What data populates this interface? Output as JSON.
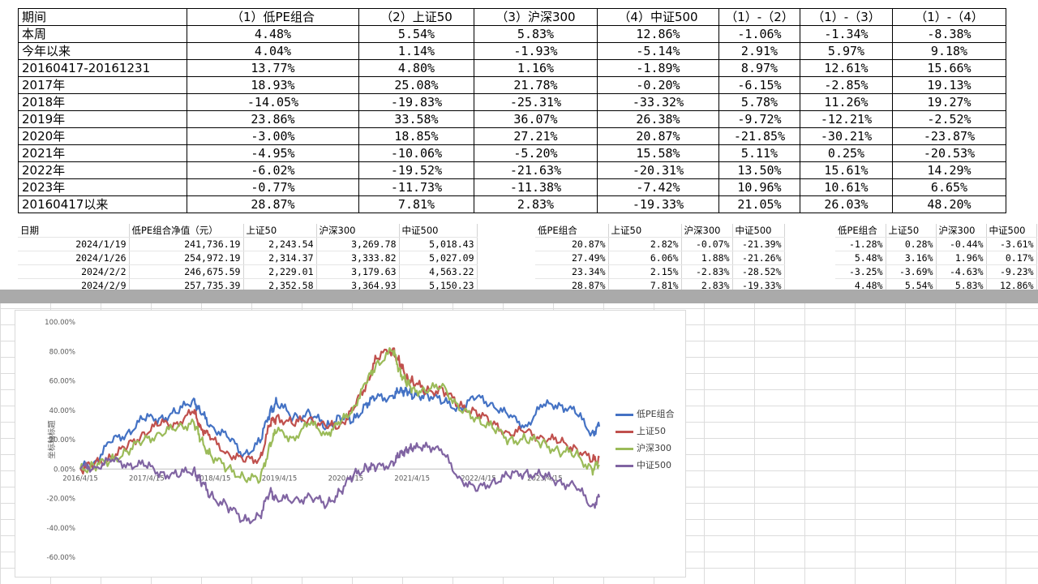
{
  "summary": {
    "headers": [
      "期间",
      "（1）低PE组合",
      "（2）上证50",
      "（3）沪深300",
      "（4）中证500",
      "（1）-（2）",
      "（1）-（3）",
      "（1）-（4）"
    ],
    "rows": [
      [
        "本周",
        "4.48%",
        "5.54%",
        "5.83%",
        "12.86%",
        "-1.06%",
        "-1.34%",
        "-8.38%"
      ],
      [
        "今年以来",
        "4.04%",
        "1.14%",
        "-1.93%",
        "-5.14%",
        "2.91%",
        "5.97%",
        "9.18%"
      ],
      [
        "20160417-20161231",
        "13.77%",
        "4.80%",
        "1.16%",
        "-1.89%",
        "8.97%",
        "12.61%",
        "15.66%"
      ],
      [
        "2017年",
        "18.93%",
        "25.08%",
        "21.78%",
        "-0.20%",
        "-6.15%",
        "-2.85%",
        "19.13%"
      ],
      [
        "2018年",
        "-14.05%",
        "-19.83%",
        "-25.31%",
        "-33.32%",
        "5.78%",
        "11.26%",
        "19.27%"
      ],
      [
        "2019年",
        "23.86%",
        "33.58%",
        "36.07%",
        "26.38%",
        "-9.72%",
        "-12.21%",
        "-2.52%"
      ],
      [
        "2020年",
        "-3.00%",
        "18.85%",
        "27.21%",
        "20.87%",
        "-21.85%",
        "-30.21%",
        "-23.87%"
      ],
      [
        "2021年",
        "-4.95%",
        "-10.06%",
        "-5.20%",
        "15.58%",
        "5.11%",
        "0.25%",
        "-20.53%"
      ],
      [
        "2022年",
        "-6.02%",
        "-19.52%",
        "-21.63%",
        "-20.31%",
        "13.50%",
        "15.61%",
        "14.29%"
      ],
      [
        "2023年",
        "-0.77%",
        "-11.73%",
        "-11.38%",
        "-7.42%",
        "10.96%",
        "10.61%",
        "6.65%"
      ],
      [
        "20160417以来",
        "28.87%",
        "7.81%",
        "2.83%",
        "-19.33%",
        "21.05%",
        "26.03%",
        "48.20%"
      ]
    ]
  },
  "daily": {
    "headers": [
      "日期",
      "低PE组合净值（元）",
      "上证50",
      "沪深300",
      "中证500"
    ],
    "rows": [
      [
        "2024/1/19",
        "241,736.19",
        "2,243.54",
        "3,269.78",
        "5,018.43"
      ],
      [
        "2024/1/26",
        "254,972.19",
        "2,314.37",
        "3,333.82",
        "5,027.09"
      ],
      [
        "2024/2/2",
        "246,675.59",
        "2,229.01",
        "3,179.63",
        "4,563.22"
      ],
      [
        "2024/2/9",
        "257,735.39",
        "2,352.58",
        "3,364.93",
        "5,150.23"
      ]
    ]
  },
  "cumulative": {
    "headers": [
      "低PE组合",
      "上证50",
      "沪深300",
      "中证500"
    ],
    "rows": [
      [
        "20.87%",
        "2.82%",
        "-0.07%",
        "-21.39%"
      ],
      [
        "27.49%",
        "6.06%",
        "1.88%",
        "-21.26%"
      ],
      [
        "23.34%",
        "2.15%",
        "-2.83%",
        "-28.52%"
      ],
      [
        "28.87%",
        "7.81%",
        "2.83%",
        "-19.33%"
      ]
    ]
  },
  "weekly": {
    "headers": [
      "低PE组合",
      "上证50",
      "沪深300",
      "中证500"
    ],
    "rows": [
      [
        "-1.28%",
        "0.28%",
        "-0.44%",
        "-3.61%"
      ],
      [
        "5.48%",
        "3.16%",
        "1.96%",
        "0.17%"
      ],
      [
        "-3.25%",
        "-3.69%",
        "-4.63%",
        "-9.23%"
      ],
      [
        "4.48%",
        "5.54%",
        "5.83%",
        "12.86%"
      ]
    ]
  },
  "colors": {
    "low_pe": "#4472c4",
    "sz50": "#c0504d",
    "hs300": "#9bbb59",
    "zz500": "#8064a2"
  },
  "chart_data": {
    "type": "line",
    "ylabel": "坐标轴标题",
    "ylim": [
      -60,
      100
    ],
    "yticks": [
      "100.00%",
      "80.00%",
      "60.00%",
      "40.00%",
      "20.00%",
      "0.00%",
      "-20.00%",
      "-40.00%",
      "-60.00%"
    ],
    "ytick_values": [
      100,
      80,
      60,
      40,
      20,
      0,
      -20,
      -40,
      -60
    ],
    "xticks": [
      "2016/4/15",
      "2017/4/15",
      "2018/4/15",
      "2019/4/15",
      "2020/4/15",
      "2021/4/15",
      "2022/4/15",
      "2023/4/15"
    ],
    "x": [
      2016.29,
      2016.5,
      2016.75,
      2017.0,
      2017.25,
      2017.5,
      2017.75,
      2018.0,
      2018.1,
      2018.25,
      2018.5,
      2018.75,
      2019.0,
      2019.15,
      2019.25,
      2019.5,
      2019.75,
      2020.0,
      2020.2,
      2020.4,
      2020.6,
      2020.75,
      2021.0,
      2021.1,
      2021.2,
      2021.3,
      2021.5,
      2021.75,
      2022.0,
      2022.25,
      2022.5,
      2022.75,
      2023.0,
      2023.25,
      2023.5,
      2023.75,
      2024.0,
      2024.11
    ],
    "series": [
      {
        "name": "低PE组合",
        "values": [
          0,
          5,
          18,
          25,
          34,
          35,
          38,
          48,
          38,
          30,
          22,
          10,
          18,
          40,
          45,
          35,
          38,
          28,
          36,
          32,
          45,
          48,
          50,
          52,
          55,
          48,
          52,
          45,
          42,
          48,
          45,
          35,
          30,
          42,
          45,
          38,
          25,
          28.87
        ]
      },
      {
        "name": "上证50",
        "values": [
          0,
          3,
          8,
          15,
          25,
          30,
          32,
          38,
          30,
          20,
          12,
          5,
          8,
          30,
          36,
          30,
          35,
          28,
          30,
          40,
          58,
          75,
          82,
          72,
          62,
          60,
          52,
          55,
          42,
          40,
          30,
          25,
          25,
          22,
          18,
          15,
          5,
          7.81
        ]
      },
      {
        "name": "沪深300",
        "values": [
          0,
          2,
          6,
          12,
          20,
          24,
          28,
          32,
          20,
          10,
          0,
          -5,
          -8,
          18,
          25,
          22,
          30,
          25,
          30,
          42,
          58,
          72,
          80,
          68,
          58,
          55,
          52,
          58,
          40,
          35,
          28,
          20,
          20,
          18,
          12,
          10,
          0,
          2.83
        ]
      },
      {
        "name": "中证500",
        "values": [
          0,
          2,
          5,
          4,
          2,
          -2,
          -5,
          0,
          -8,
          -18,
          -25,
          -35,
          -32,
          -15,
          -20,
          -22,
          -18,
          -25,
          -15,
          -5,
          2,
          0,
          5,
          8,
          15,
          12,
          18,
          10,
          -5,
          -15,
          -8,
          -5,
          -2,
          -5,
          -8,
          -12,
          -25,
          -19.33
        ]
      }
    ]
  }
}
